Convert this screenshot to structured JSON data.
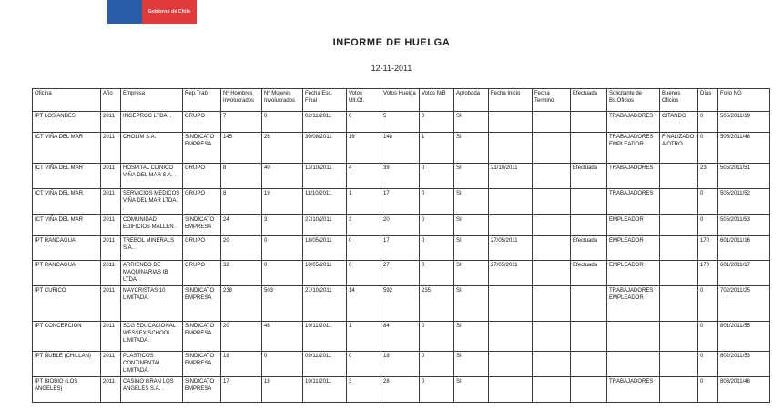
{
  "logo": {
    "text": "Gobierno de Chile",
    "blue_color": "#2a5ca8",
    "red_color": "#e13a3a"
  },
  "header": {
    "title": "INFORME DE HUELGA",
    "date": "12-11-2011"
  },
  "table": {
    "columns": [
      "Oficina",
      "Año",
      "Empresa",
      "Rep.Trab.",
      "Nº Hombres Involucrados",
      "Nº Mujeres Involucrados",
      "Fecha Esc. Final",
      "Votos Ult.Of.",
      "Votos Huelga",
      "Votos N/B",
      "Aprobada",
      "Fecha Inicio",
      "Fecha Termino",
      "Efectuada",
      "Solicitante de Bs.Oficios",
      "Buenos Oficios",
      "Días",
      "Folio NG"
    ],
    "rows": [
      [
        "IPT LOS ANDES",
        "2011",
        "INGEPROC LTDA. .",
        "GRUPO",
        "7",
        "0",
        "02/11/2011",
        "0",
        "5",
        "0",
        "SI",
        "",
        "",
        "",
        "TRABAJADORES",
        "CITANDO",
        "0",
        "505/2011/19"
      ],
      [
        "ICT VIÑA DEL MAR",
        "2011",
        "CHOLIM S.A. .",
        "SINDICATO EMPRESA",
        "145",
        "28",
        "30/08/2011",
        "16",
        "148",
        "1",
        "SI",
        "",
        "",
        "",
        "TRABAJADORES EMPLEADOR",
        "FINALIZADO A OTRO",
        "0",
        "505/2011/48"
      ],
      [
        "ICT VIÑA DEL MAR",
        "2011",
        "HOSPITAL CLINICO VIÑA DEL MAR S.A. .",
        "GRUPO",
        "8",
        "40",
        "13/10/2011",
        "4",
        "39",
        "0",
        "SI",
        "21/10/2011",
        "",
        "Efectuada",
        "TRABAJADORES",
        "",
        "23",
        "505/2011/51"
      ],
      [
        "ICT VIÑA DEL MAR",
        "2011",
        "SERVICIOS MEDICOS VIÑA DEL MAR LTDA. .",
        "GRUPO",
        "8",
        "19",
        "11/10/2011",
        "1",
        "17",
        "0",
        "SI",
        "",
        "",
        "",
        "TRABAJADORES",
        "",
        "0",
        "505/2011/52"
      ],
      [
        "ICT VIÑA DEL MAR",
        "2011",
        "COMUNIDAD EDIFICIOS MALLEN .",
        "SINDICATO EMPRESA",
        "24",
        "3",
        "27/10/2011",
        "3",
        "20",
        "0",
        "SI",
        "",
        "",
        "",
        "EMPLEADOR",
        "",
        "0",
        "505/2011/53"
      ],
      [
        "IPT RANCAGUA",
        "2011",
        "TREBOL MINERALS S.A. .",
        "GRUPO",
        "20",
        "0",
        "18/05/2011",
        "0",
        "17",
        "0",
        "SI",
        "27/05/2011",
        "",
        "Efectuada",
        "EMPLEADOR",
        "",
        "170",
        "601/2011/16"
      ],
      [
        "IPT RANCAGUA",
        "2011",
        "ARRIENDO DE MAQUINARIAS IB LTDA. .",
        "GRUPO",
        "32",
        "0",
        "18/05/2011",
        "0",
        "27",
        "0",
        "SI",
        "27/05/2011",
        "",
        "Efectuada",
        "EMPLEADOR",
        "",
        "170",
        "601/2011/17"
      ],
      [
        "IPT CURICO",
        "2011",
        "MAYCRISTAS 10 LIMITADA.",
        "SINDICATO EMPRESA",
        "238",
        "503",
        "27/10/2011",
        "14",
        "592",
        "235",
        "SI",
        "",
        "",
        "",
        "TRABAJADORES EMPLEADOR",
        "",
        "0",
        "702/2011/25"
      ],
      [
        "IPT CONCEPCION",
        "2011",
        "SCG EDUCACIONAL WESSEX SCHOOL LIMITADA.",
        "SINDICATO EMPRESA",
        "20",
        "48",
        "10/11/2011",
        "1",
        "84",
        "0",
        "SI",
        "",
        "",
        "",
        "",
        "",
        "0",
        "801/2011/55"
      ],
      [
        "IPT ÑUBLE (CHILLAN)",
        "2011",
        "PLASTICOS CONTINENTAL LIMITADA.",
        "SINDICATO EMPRESA",
        "18",
        "0",
        "09/11/2011",
        "0",
        "18",
        "0",
        "SI",
        "",
        "",
        "",
        "",
        "",
        "0",
        "802/2011/53"
      ],
      [
        "IPT BIOBIO (LOS ANGELES)",
        "2011",
        "CASINO GRAN LOS ANGELES S.A. .",
        "SINDICATO EMPRESA",
        "17",
        "18",
        "10/11/2011",
        "3",
        "28",
        "0",
        "SI",
        "",
        "",
        "",
        "TRABAJADORES",
        "",
        "0",
        "803/2011/46"
      ]
    ]
  }
}
